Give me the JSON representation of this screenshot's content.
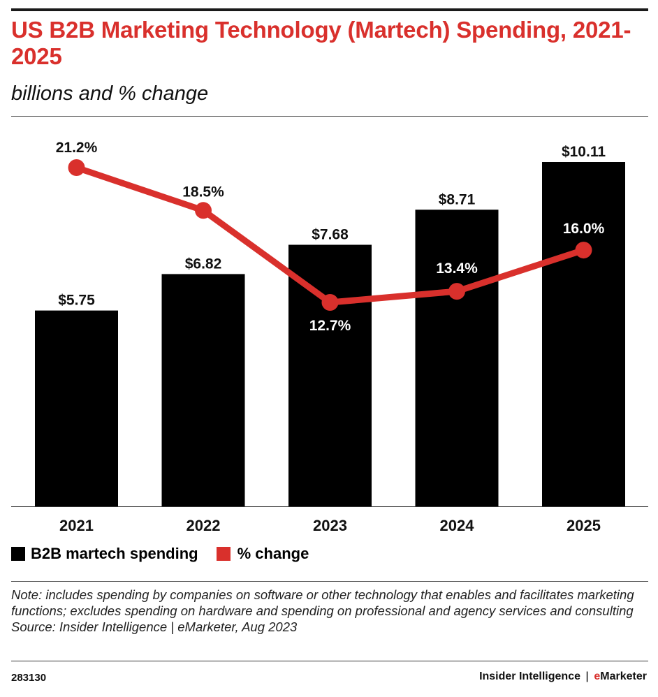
{
  "header": {
    "title": "US B2B Marketing Technology (Martech) Spending, 2021-2025",
    "subtitle": "billions and % change"
  },
  "chart_data": {
    "type": "bar",
    "title": "US B2B Marketing Technology (Martech) Spending, 2021-2025",
    "subtitle": "billions and % change",
    "categories": [
      "2021",
      "2022",
      "2023",
      "2024",
      "2025"
    ],
    "series": [
      {
        "name": "B2B martech spending",
        "type": "bar",
        "unit": "billions",
        "values": [
          5.75,
          6.82,
          7.68,
          8.71,
          10.11
        ],
        "labels": [
          "$5.75",
          "$6.82",
          "$7.68",
          "$8.71",
          "$10.11"
        ],
        "color": "#000000"
      },
      {
        "name": "% change",
        "type": "line",
        "unit": "percent",
        "values": [
          21.2,
          18.5,
          12.7,
          13.4,
          16.0
        ],
        "labels": [
          "21.2%",
          "18.5%",
          "12.7%",
          "13.4%",
          "16.0%"
        ],
        "color": "#d9302c"
      }
    ],
    "xlabel": "",
    "ylabel": "",
    "grid": false,
    "legend": "bottom-left"
  },
  "legend": {
    "items": [
      {
        "label": "B2B martech spending",
        "color": "#000000"
      },
      {
        "label": "% change",
        "color": "#d9302c"
      }
    ]
  },
  "note": {
    "text": "Note: includes spending by companies on software or other technology that enables and facilitates marketing functions; excludes spending on hardware and spending on professional and agency services and consulting",
    "source": "Source: Insider Intelligence | eMarketer, Aug 2023"
  },
  "footer": {
    "chart_id": "283130",
    "brand_left": "Insider Intelligence",
    "brand_separator": "|",
    "brand_e": "e",
    "brand_rest": "Marketer"
  }
}
